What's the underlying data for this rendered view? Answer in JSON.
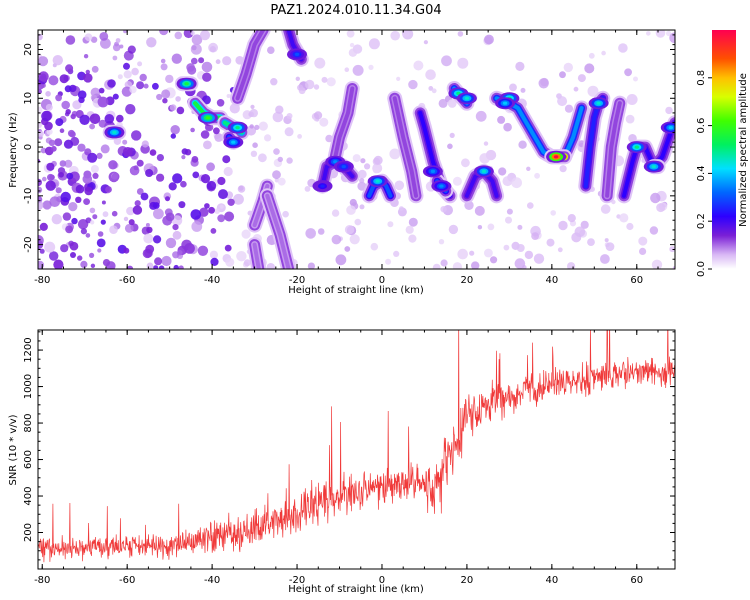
{
  "title": "PAZ1.2024.010.11.34.G04",
  "colors": {
    "snr_line": "#f03a3a",
    "axis": "#000000",
    "low_amp": "#d9b8f5"
  },
  "colorbar": {
    "label": "Normalized spectral amplitude",
    "ticks": [
      "0.0",
      "0.2",
      "0.4",
      "0.6",
      "0.8"
    ],
    "tick_values": [
      0.0,
      0.2,
      0.4,
      0.6,
      0.8
    ],
    "range": [
      0,
      1
    ]
  },
  "chart_data": [
    {
      "type": "heatmap",
      "xlabel": "Height of straight line (km)",
      "ylabel": "Frequency (Hz)",
      "xlim": [
        -81,
        69
      ],
      "ylim": [
        -25,
        24
      ],
      "xticks": [
        -80,
        -60,
        -40,
        -20,
        0,
        20,
        40,
        60
      ],
      "xtick_labels": [
        "-80",
        "-60",
        "-40",
        "-20",
        "0",
        "20",
        "40",
        "60"
      ],
      "yticks": [
        -20,
        -10,
        0,
        10,
        20
      ],
      "ytick_labels": [
        "-20",
        "-10",
        "0",
        "10",
        "20"
      ],
      "tracks": [
        {
          "points": [
            [
              -47,
              13
            ],
            [
              -45,
              13
            ]
          ],
          "amp": 0.45
        },
        {
          "points": [
            [
              -44,
              9
            ],
            [
              -42,
              7
            ],
            [
              -40,
              6
            ],
            [
              -38,
              6
            ]
          ],
          "amp": 0.55
        },
        {
          "points": [
            [
              -37,
              5
            ],
            [
              -35,
              4
            ],
            [
              -33,
              3
            ]
          ],
          "amp": 0.5
        },
        {
          "points": [
            [
              -64,
              3
            ],
            [
              -62,
              3
            ]
          ],
          "amp": 0.35
        },
        {
          "points": [
            [
              -36,
              2
            ],
            [
              -35,
              1
            ]
          ],
          "amp": 0.3
        },
        {
          "points": [
            [
              -34,
              10
            ],
            [
              -32,
              15
            ],
            [
              -30,
              21
            ],
            [
              -28,
              24
            ]
          ],
          "amp": 0.12
        },
        {
          "points": [
            [
              -22,
              24
            ],
            [
              -21,
              21
            ],
            [
              -19,
              18
            ]
          ],
          "amp": 0.2
        },
        {
          "points": [
            [
              -30,
              -16
            ],
            [
              -28,
              -11
            ],
            [
              -27,
              -8
            ]
          ],
          "amp": 0.1
        },
        {
          "points": [
            [
              -27,
              -10
            ],
            [
              -24,
              -18
            ],
            [
              -22,
              -25
            ]
          ],
          "amp": 0.1
        },
        {
          "points": [
            [
              -30,
              -20
            ],
            [
              -29,
              -25
            ]
          ],
          "amp": 0.1
        },
        {
          "points": [
            [
              -14,
              -8
            ],
            [
              -13,
              -4
            ],
            [
              -11,
              -3
            ],
            [
              -9,
              -4
            ],
            [
              -7,
              -6
            ]
          ],
          "amp": 0.2
        },
        {
          "points": [
            [
              -11,
              -2
            ],
            [
              -10,
              2
            ],
            [
              -8,
              7
            ],
            [
              -7,
              12
            ]
          ],
          "amp": 0.12
        },
        {
          "points": [
            [
              -3,
              -10
            ],
            [
              -2,
              -8
            ],
            [
              0,
              -7
            ],
            [
              1,
              -8
            ],
            [
              2,
              -10
            ]
          ],
          "amp": 0.3
        },
        {
          "points": [
            [
              3,
              10
            ],
            [
              5,
              2
            ],
            [
              7,
              -5
            ],
            [
              8,
              -10
            ]
          ],
          "amp": 0.12
        },
        {
          "points": [
            [
              9,
              7
            ],
            [
              10,
              4
            ],
            [
              12,
              -3
            ],
            [
              14,
              -8
            ],
            [
              16,
              -10
            ]
          ],
          "amp": 0.22
        },
        {
          "points": [
            [
              15,
              -9
            ],
            [
              13,
              -7
            ]
          ],
          "amp": 0.3
        },
        {
          "points": [
            [
              17,
              12
            ],
            [
              18,
              11
            ],
            [
              19,
              10
            ],
            [
              20,
              9
            ]
          ],
          "amp": 0.35
        },
        {
          "points": [
            [
              20,
              -10
            ],
            [
              22,
              -6
            ],
            [
              24,
              -5
            ],
            [
              26,
              -7
            ],
            [
              27,
              -10
            ]
          ],
          "amp": 0.2
        },
        {
          "points": [
            [
              27,
              10
            ],
            [
              30,
              9
            ],
            [
              32,
              8
            ],
            [
              34,
              5
            ],
            [
              36,
              2
            ],
            [
              38,
              -1
            ],
            [
              40,
              -2
            ],
            [
              43,
              -2
            ],
            [
              45,
              2
            ],
            [
              47,
              8
            ]
          ],
          "amp": 0.35
        },
        {
          "points": [
            [
              40,
              -2
            ],
            [
              43,
              -2
            ]
          ],
          "amp": 0.95
        },
        {
          "points": [
            [
              48,
              -8
            ],
            [
              49,
              0
            ],
            [
              50,
              6
            ],
            [
              51,
              9
            ],
            [
              52,
              10
            ]
          ],
          "amp": 0.25
        },
        {
          "points": [
            [
              53,
              -10
            ],
            [
              54,
              0
            ],
            [
              55,
              5
            ],
            [
              56,
              9
            ]
          ],
          "amp": 0.12
        },
        {
          "points": [
            [
              57,
              -10
            ],
            [
              59,
              -3
            ],
            [
              60,
              0
            ],
            [
              62,
              0
            ],
            [
              64,
              -4
            ],
            [
              66,
              -2
            ],
            [
              68,
              3
            ],
            [
              69,
              5
            ]
          ],
          "amp": 0.22
        },
        {
          "points": [
            [
              65,
              -4
            ],
            [
              64,
              -4
            ]
          ],
          "amp": 0.4
        }
      ],
      "peaks": [
        {
          "x": -46,
          "y": 13,
          "amp": 0.55
        },
        {
          "x": -41,
          "y": 6,
          "amp": 0.6
        },
        {
          "x": -34,
          "y": 4,
          "amp": 0.5
        },
        {
          "x": -63,
          "y": 3,
          "amp": 0.45
        },
        {
          "x": -35,
          "y": 1,
          "amp": 0.4
        },
        {
          "x": -20,
          "y": 19,
          "amp": 0.3
        },
        {
          "x": -11,
          "y": -3,
          "amp": 0.35
        },
        {
          "x": -9,
          "y": -4,
          "amp": 0.3
        },
        {
          "x": -14,
          "y": -8,
          "amp": 0.25
        },
        {
          "x": -1,
          "y": -7,
          "amp": 0.45
        },
        {
          "x": 12,
          "y": -5,
          "amp": 0.35
        },
        {
          "x": 14,
          "y": -8,
          "amp": 0.35
        },
        {
          "x": 18,
          "y": 11,
          "amp": 0.5
        },
        {
          "x": 20,
          "y": 10,
          "amp": 0.45
        },
        {
          "x": 24,
          "y": -5,
          "amp": 0.45
        },
        {
          "x": 30,
          "y": 10,
          "amp": 0.5
        },
        {
          "x": 29,
          "y": 9,
          "amp": 0.4
        },
        {
          "x": 41,
          "y": -2,
          "amp": 1.0
        },
        {
          "x": 51,
          "y": 9,
          "amp": 0.45
        },
        {
          "x": 60,
          "y": 0,
          "amp": 0.5
        },
        {
          "x": 64,
          "y": -4,
          "amp": 0.45
        },
        {
          "x": 68,
          "y": 4,
          "amp": 0.4
        }
      ]
    },
    {
      "type": "line",
      "xlabel": "Height of straight line (km)",
      "ylabel": "SNR (10 * v/v)",
      "xlim": [
        -81,
        69
      ],
      "ylim": [
        0,
        1310
      ],
      "xticks": [
        -80,
        -60,
        -40,
        -20,
        0,
        20,
        40,
        60
      ],
      "xtick_labels": [
        "-80",
        "-60",
        "-40",
        "-20",
        "0",
        "20",
        "40",
        "60"
      ],
      "yticks": [
        200,
        400,
        600,
        800,
        1000,
        1200
      ],
      "ytick_labels": [
        "200",
        "400",
        "600",
        "800",
        "1000",
        "1200"
      ],
      "series": [
        {
          "x": [
            -81,
            -75,
            -70,
            -65,
            -60,
            -55,
            -50,
            -45,
            -40,
            -35,
            -30,
            -25,
            -20,
            -15,
            -10,
            -5,
            0,
            5,
            10,
            12,
            15,
            18,
            20,
            25,
            30,
            35,
            40,
            45,
            50,
            55,
            60,
            65,
            69
          ],
          "mean": [
            120,
            115,
            110,
            120,
            125,
            120,
            130,
            140,
            170,
            180,
            220,
            260,
            300,
            360,
            400,
            430,
            450,
            470,
            480,
            400,
            600,
            700,
            850,
            900,
            950,
            980,
            1000,
            1030,
            1050,
            1060,
            1080,
            1080,
            1100
          ],
          "noise": [
            80,
            80,
            80,
            80,
            80,
            80,
            90,
            100,
            120,
            120,
            130,
            140,
            150,
            150,
            140,
            140,
            130,
            130,
            140,
            150,
            200,
            180,
            140,
            120,
            110,
            110,
            110,
            110,
            110,
            110,
            110,
            110,
            110
          ],
          "samples": 1500
        }
      ]
    }
  ]
}
